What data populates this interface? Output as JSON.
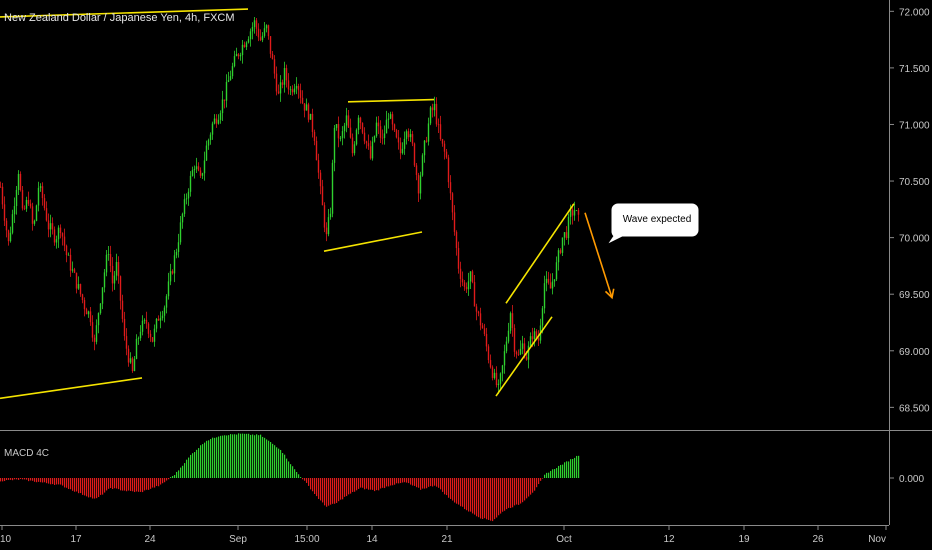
{
  "chart_data": [
    {
      "type": "candlestick",
      "title": "New Zealand Dollar / Japanese Yen, 4h, FXCM",
      "y_ticks": [
        72.0,
        71.5,
        71.0,
        70.5,
        70.0,
        69.5,
        69.0,
        68.5
      ],
      "y_tick_labels": [
        "72.000",
        "71.500",
        "71.000",
        "70.500",
        "70.000",
        "69.500",
        "69.000",
        "68.500"
      ],
      "ylim": [
        68.3,
        72.1
      ],
      "x_tick_labels": [
        "10",
        "17",
        "24",
        "Sep",
        "15:00",
        "14",
        "21",
        "Oct",
        "12",
        "19",
        "26",
        "Nov"
      ],
      "colors": {
        "up": "#2fd12f",
        "down": "#e01b1b",
        "annotation": "#f5e400",
        "arrow": "#ff9a00"
      },
      "price_path": [
        [
          0,
          70.45
        ],
        [
          4,
          70.2
        ],
        [
          8,
          69.95
        ],
        [
          12,
          70.2
        ],
        [
          18,
          70.6
        ],
        [
          22,
          70.2
        ],
        [
          28,
          70.35
        ],
        [
          33,
          70.05
        ],
        [
          38,
          70.45
        ],
        [
          42,
          70.35
        ],
        [
          48,
          70.1
        ],
        [
          55,
          70.0
        ],
        [
          60,
          70.1
        ],
        [
          66,
          69.85
        ],
        [
          72,
          69.7
        ],
        [
          78,
          69.55
        ],
        [
          84,
          69.4
        ],
        [
          90,
          69.3
        ],
        [
          94,
          69.05
        ],
        [
          98,
          69.35
        ],
        [
          104,
          69.7
        ],
        [
          108,
          69.9
        ],
        [
          112,
          69.6
        ],
        [
          116,
          69.75
        ],
        [
          120,
          69.45
        ],
        [
          124,
          69.1
        ],
        [
          128,
          68.95
        ],
        [
          132,
          68.8
        ],
        [
          136,
          69.05
        ],
        [
          140,
          69.2
        ],
        [
          146,
          69.25
        ],
        [
          152,
          69.1
        ],
        [
          158,
          69.3
        ],
        [
          164,
          69.4
        ],
        [
          170,
          69.65
        ],
        [
          176,
          69.9
        ],
        [
          182,
          70.2
        ],
        [
          188,
          70.45
        ],
        [
          194,
          70.65
        ],
        [
          200,
          70.5
        ],
        [
          206,
          70.8
        ],
        [
          212,
          71.0
        ],
        [
          218,
          71.1
        ],
        [
          224,
          71.25
        ],
        [
          230,
          71.45
        ],
        [
          236,
          71.6
        ],
        [
          242,
          71.7
        ],
        [
          248,
          71.8
        ],
        [
          254,
          71.9
        ],
        [
          260,
          71.75
        ],
        [
          266,
          71.85
        ],
        [
          272,
          71.55
        ],
        [
          278,
          71.25
        ],
        [
          284,
          71.45
        ],
        [
          290,
          71.3
        ],
        [
          296,
          71.4
        ],
        [
          302,
          71.2
        ],
        [
          308,
          71.1
        ],
        [
          314,
          70.9
        ],
        [
          320,
          70.4
        ],
        [
          326,
          70.0
        ],
        [
          330,
          70.25
        ],
        [
          334,
          71.0
        ],
        [
          340,
          70.85
        ],
        [
          346,
          71.05
        ],
        [
          352,
          70.75
        ],
        [
          358,
          71.1
        ],
        [
          364,
          70.9
        ],
        [
          370,
          70.7
        ],
        [
          376,
          71.0
        ],
        [
          382,
          70.85
        ],
        [
          388,
          71.1
        ],
        [
          394,
          70.9
        ],
        [
          400,
          70.75
        ],
        [
          406,
          71.0
        ],
        [
          412,
          70.8
        ],
        [
          418,
          70.45
        ],
        [
          424,
          70.8
        ],
        [
          430,
          71.1
        ],
        [
          434,
          71.15
        ],
        [
          440,
          70.85
        ],
        [
          446,
          70.7
        ],
        [
          452,
          70.2
        ],
        [
          458,
          69.75
        ],
        [
          464,
          69.55
        ],
        [
          470,
          69.65
        ],
        [
          476,
          69.35
        ],
        [
          482,
          69.2
        ],
        [
          488,
          68.95
        ],
        [
          494,
          68.75
        ],
        [
          498,
          68.65
        ],
        [
          502,
          68.85
        ],
        [
          506,
          69.1
        ],
        [
          510,
          69.35
        ],
        [
          514,
          69.05
        ],
        [
          518,
          68.95
        ],
        [
          522,
          69.05
        ],
        [
          526,
          68.95
        ],
        [
          532,
          69.15
        ],
        [
          538,
          69.1
        ],
        [
          544,
          69.6
        ],
        [
          550,
          69.55
        ],
        [
          556,
          69.75
        ],
        [
          562,
          70.0
        ],
        [
          566,
          70.05
        ],
        [
          570,
          70.2
        ],
        [
          574,
          70.25
        ],
        [
          578,
          70.15
        ]
      ],
      "annotations": {
        "channel_lines": [
          {
            "name": "upper-trendline-left",
            "points": [
              [
                0,
                71.95
              ],
              [
                248,
                72.02
              ]
            ]
          },
          {
            "name": "lower-trendline-left",
            "points": [
              [
                0,
                68.58
              ],
              [
                142,
                68.76
              ]
            ]
          },
          {
            "name": "flag-top",
            "points": [
              [
                348,
                71.2
              ],
              [
                434,
                71.22
              ]
            ]
          },
          {
            "name": "flag-bottom",
            "points": [
              [
                324,
                69.88
              ],
              [
                422,
                70.05
              ]
            ]
          },
          {
            "name": "channel-upper",
            "points": [
              [
                506,
                69.42
              ],
              [
                574,
                70.3
              ]
            ]
          },
          {
            "name": "channel-lower",
            "points": [
              [
                496,
                68.6
              ],
              [
                552,
                69.3
              ]
            ]
          }
        ],
        "projection_arrow": {
          "from": [
            585,
            70.22
          ],
          "to": [
            612,
            69.47
          ]
        },
        "callout_text": "Wave expected"
      }
    },
    {
      "type": "bar",
      "title": "MACD 4C",
      "y_ticks": [
        0.0
      ],
      "y_tick_labels": [
        "0.000"
      ],
      "ylim": [
        -0.33,
        0.33
      ],
      "colors": {
        "positive": "#2fd12f",
        "negative": "#e01b1b"
      },
      "histogram": [
        [
          0,
          -0.02
        ],
        [
          20,
          -0.01
        ],
        [
          40,
          -0.03
        ],
        [
          60,
          -0.05
        ],
        [
          80,
          -0.11
        ],
        [
          95,
          -0.15
        ],
        [
          110,
          -0.07
        ],
        [
          125,
          -0.09
        ],
        [
          140,
          -0.1
        ],
        [
          160,
          -0.05
        ],
        [
          175,
          0.03
        ],
        [
          190,
          0.16
        ],
        [
          205,
          0.26
        ],
        [
          220,
          0.3
        ],
        [
          240,
          0.31
        ],
        [
          260,
          0.3
        ],
        [
          280,
          0.2
        ],
        [
          295,
          0.05
        ],
        [
          305,
          -0.03
        ],
        [
          315,
          -0.12
        ],
        [
          325,
          -0.2
        ],
        [
          335,
          -0.18
        ],
        [
          345,
          -0.13
        ],
        [
          360,
          -0.07
        ],
        [
          375,
          -0.09
        ],
        [
          390,
          -0.05
        ],
        [
          405,
          -0.03
        ],
        [
          420,
          -0.08
        ],
        [
          435,
          -0.05
        ],
        [
          450,
          -0.15
        ],
        [
          465,
          -0.22
        ],
        [
          480,
          -0.28
        ],
        [
          492,
          -0.3
        ],
        [
          505,
          -0.22
        ],
        [
          520,
          -0.18
        ],
        [
          535,
          -0.08
        ],
        [
          545,
          0.03
        ],
        [
          560,
          0.09
        ],
        [
          578,
          0.16
        ]
      ]
    }
  ]
}
